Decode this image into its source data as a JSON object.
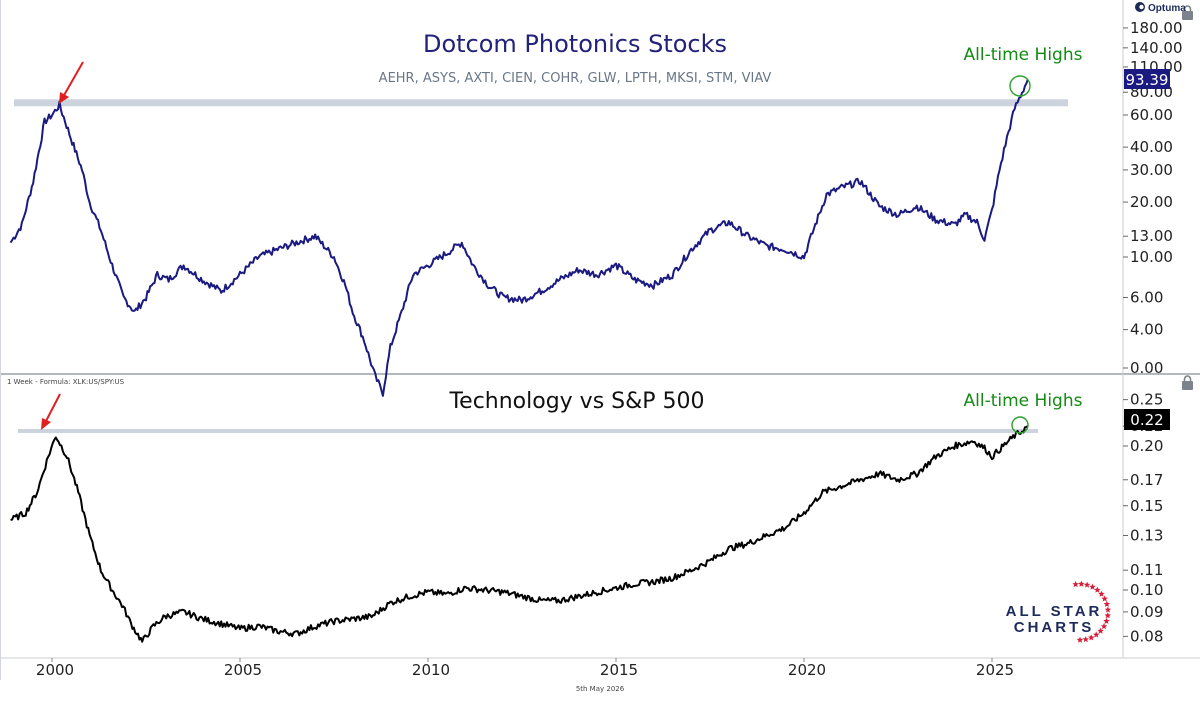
{
  "brand": {
    "optuma": "Optuma",
    "logo_line1": "ALL STAR",
    "logo_line2": "CHARTS"
  },
  "footer_date": "5th May 2026",
  "colors": {
    "top_series": "#1a1a80",
    "bottom_series": "#000000",
    "annotation": "#138a13",
    "arrow": "#e02020",
    "resistance": "#cdd3de"
  },
  "x_axis": {
    "min": 1998.8,
    "max": 2029.5,
    "ticks": [
      2000,
      2005,
      2010,
      2015,
      2020,
      2025
    ]
  },
  "chart_data": [
    {
      "type": "line",
      "title": "Dotcom Photonics Stocks",
      "subtitle": "AEHR, ASYS, AXTI, CIEN, COHR, GLW, LPTH, MKSI, STM, VIAV",
      "scale": "log",
      "yticks": [
        "180.00",
        "140.00",
        "110.00",
        "80.00",
        "60.00",
        "40.00",
        "30.00",
        "20.00",
        "13.00",
        "10.00",
        "6.00",
        "4.00",
        "0.00"
      ],
      "last_value": "93.39",
      "annotation": "All-time Highs",
      "resistance_level": 70,
      "series": [
        {
          "x": [
            1998.9,
            1999.2,
            1999.5,
            1999.8,
            2000.0,
            2000.2,
            2000.5,
            2000.8,
            2001.0,
            2001.3,
            2001.6,
            2001.9,
            2002.2,
            2002.5,
            2002.8,
            2003.1,
            2003.5,
            2004.0,
            2004.5,
            2005.0,
            2005.5,
            2006.0,
            2006.5,
            2007.0,
            2007.5,
            2007.8,
            2008.0,
            2008.3,
            2008.6,
            2008.8,
            2009.0,
            2009.3,
            2009.6,
            2010.0,
            2010.5,
            2010.9,
            2011.2,
            2011.6,
            2012.0,
            2012.5,
            2013.0,
            2013.5,
            2014.0,
            2014.5,
            2015.0,
            2015.5,
            2016.0,
            2016.5,
            2017.0,
            2017.5,
            2018.0,
            2018.5,
            2019.0,
            2019.5,
            2020.0,
            2020.3,
            2020.6,
            2021.0,
            2021.5,
            2022.0,
            2022.5,
            2023.0,
            2023.5,
            2024.0,
            2024.3,
            2024.6,
            2024.8,
            2025.0,
            2025.2,
            2025.4,
            2025.6,
            2025.8,
            2025.95
          ],
          "values": [
            12,
            15,
            26,
            55,
            60,
            68,
            45,
            30,
            20,
            14,
            9,
            6,
            5,
            6,
            8,
            7.5,
            9,
            7.5,
            6.5,
            8,
            10,
            11,
            12,
            13,
            10,
            7,
            5,
            3.5,
            2.2,
            1.8,
            3.2,
            5,
            8,
            9,
            10.5,
            12,
            9,
            7,
            6,
            5.8,
            6.5,
            7.5,
            8.5,
            8,
            9,
            7.5,
            7,
            8,
            11,
            14,
            15.5,
            13,
            11.5,
            11,
            10,
            15,
            22,
            24,
            26,
            19,
            17,
            19,
            16,
            15,
            17,
            15.5,
            12.5,
            18,
            30,
            45,
            65,
            80,
            93.39
          ]
        }
      ]
    },
    {
      "type": "line",
      "title": "Technology vs S&P 500",
      "caption": "1 Week - Formula: XLK:US/SPY:US",
      "scale": "log",
      "yticks": [
        "0.25",
        "0.22",
        "0.20",
        "0.17",
        "0.15",
        "0.13",
        "0.11",
        "0.10",
        "0.09",
        "0.08"
      ],
      "last_value": "0.22",
      "annotation": "All-time Highs",
      "resistance_level": 0.215,
      "series": [
        {
          "x": [
            1998.9,
            1999.3,
            1999.6,
            1999.9,
            2000.1,
            2000.4,
            2000.7,
            2001.0,
            2001.3,
            2001.6,
            2001.9,
            2002.1,
            2002.4,
            2002.7,
            2003.0,
            2003.5,
            2004.0,
            2004.5,
            2005.0,
            2005.5,
            2006.0,
            2006.5,
            2007.0,
            2007.5,
            2008.0,
            2008.5,
            2009.0,
            2009.5,
            2010.0,
            2010.5,
            2011.0,
            2011.5,
            2012.0,
            2012.5,
            2013.0,
            2013.5,
            2014.0,
            2014.5,
            2015.0,
            2015.5,
            2016.0,
            2016.5,
            2017.0,
            2017.5,
            2018.0,
            2018.5,
            2019.0,
            2019.5,
            2020.0,
            2020.5,
            2021.0,
            2021.5,
            2022.0,
            2022.5,
            2023.0,
            2023.5,
            2024.0,
            2024.5,
            2024.8,
            2025.0,
            2025.3,
            2025.6,
            2025.8,
            2025.95
          ],
          "values": [
            0.14,
            0.145,
            0.16,
            0.19,
            0.21,
            0.19,
            0.16,
            0.13,
            0.11,
            0.1,
            0.092,
            0.085,
            0.078,
            0.084,
            0.088,
            0.09,
            0.087,
            0.085,
            0.083,
            0.084,
            0.082,
            0.081,
            0.084,
            0.086,
            0.087,
            0.088,
            0.094,
            0.097,
            0.099,
            0.098,
            0.101,
            0.1,
            0.099,
            0.097,
            0.095,
            0.095,
            0.097,
            0.099,
            0.101,
            0.103,
            0.104,
            0.106,
            0.11,
            0.115,
            0.122,
            0.125,
            0.13,
            0.135,
            0.145,
            0.16,
            0.165,
            0.17,
            0.175,
            0.17,
            0.175,
            0.19,
            0.2,
            0.205,
            0.198,
            0.19,
            0.2,
            0.21,
            0.215,
            0.22
          ]
        }
      ]
    }
  ]
}
